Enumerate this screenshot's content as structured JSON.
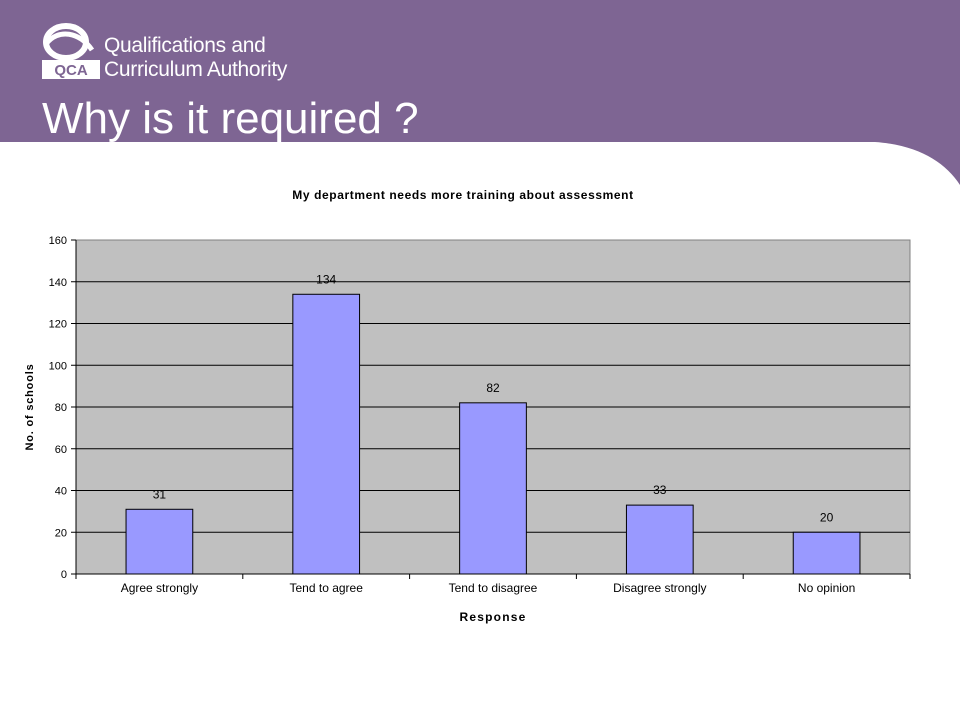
{
  "header": {
    "org_line1": "Qualifications and",
    "org_line2": "Curriculum Authority",
    "logo_text": "QCA",
    "title": "Why is it required ?",
    "banner_color": "#7e6593"
  },
  "chart_data": {
    "type": "bar",
    "title": "My department needs more training about assessment",
    "xlabel": "Response",
    "ylabel": "No. of schools",
    "categories": [
      "Agree strongly",
      "Tend to agree",
      "Tend to disagree",
      "Disagree strongly",
      "No opinion"
    ],
    "values": [
      31,
      134,
      82,
      33,
      20
    ],
    "ylim": [
      0,
      160
    ],
    "yticks": [
      0,
      20,
      40,
      60,
      80,
      100,
      120,
      140,
      160
    ],
    "grid": true,
    "legend": "none",
    "bar_color": "#9999ff",
    "plot_background": "#c0c0c0"
  }
}
